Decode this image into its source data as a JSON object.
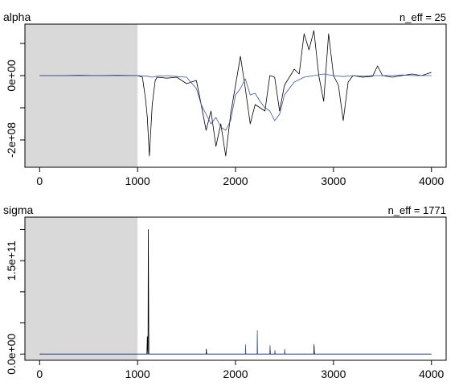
{
  "chart_data": [
    {
      "type": "line",
      "title": "alpha",
      "annotation": "n_eff = 25",
      "xlim": [
        -150,
        4150
      ],
      "ylim": [
        -285000000,
        160000000
      ],
      "warmup": [
        0,
        1000
      ],
      "x_ticks": [
        0,
        1000,
        2000,
        3000,
        4000
      ],
      "x_tick_labels": [
        "0",
        "1000",
        "2000",
        "3000",
        "4000"
      ],
      "y_ticks": [
        -200000000,
        -100000000,
        0,
        100000000
      ],
      "y_tick_labels": [
        {
          "value": 0,
          "text": "0e+00"
        },
        {
          "value": -200000000,
          "text": "-2e+08"
        }
      ],
      "colors": {
        "chain1": "#000000",
        "chain2": "#3a55a0",
        "warmup_shade": "#d9d9d9"
      },
      "series": [
        {
          "x": [
            0,
            200,
            400,
            600,
            800,
            1000,
            1050,
            1080,
            1100,
            1120,
            1150,
            1180,
            1200,
            1300,
            1400,
            1500,
            1600,
            1650,
            1700,
            1750,
            1800,
            1850,
            1900,
            1950,
            2000,
            2050,
            2100,
            2150,
            2200,
            2250,
            2300,
            2350,
            2400,
            2450,
            2500,
            2550,
            2600,
            2650,
            2700,
            2750,
            2800,
            2850,
            2900,
            2950,
            3000,
            3050,
            3100,
            3150,
            3200,
            3300,
            3400,
            3450,
            3500,
            3600,
            3700,
            3800,
            3900,
            4000
          ],
          "values": [
            0,
            0,
            1000000,
            0,
            1000000,
            0,
            -5000000,
            -70000000,
            -130000000,
            -250000000,
            -90000000,
            -15000000,
            -5000000,
            -8000000,
            -5000000,
            -25000000,
            -15000000,
            -90000000,
            -170000000,
            -110000000,
            -220000000,
            -150000000,
            -250000000,
            -120000000,
            -30000000,
            60000000,
            -40000000,
            -150000000,
            -90000000,
            -100000000,
            -110000000,
            0,
            -5000000,
            -110000000,
            -30000000,
            -5000000,
            20000000,
            5000000,
            130000000,
            80000000,
            140000000,
            0,
            -80000000,
            130000000,
            0,
            -30000000,
            -140000000,
            -20000000,
            0,
            -5000000,
            -2000000,
            30000000,
            0,
            -5000000,
            0,
            5000000,
            0,
            10000000
          ]
        },
        {
          "x": [
            0,
            200,
            400,
            600,
            800,
            1000,
            1100,
            1150,
            1200,
            1300,
            1400,
            1500,
            1600,
            1650,
            1700,
            1750,
            1800,
            1850,
            1900,
            1950,
            2000,
            2050,
            2100,
            2150,
            2200,
            2250,
            2300,
            2350,
            2400,
            2450,
            2500,
            2600,
            2700,
            2800,
            2900,
            3000,
            3100,
            3200,
            3300,
            3400,
            3500,
            3600,
            3700,
            3800,
            3900,
            4000
          ],
          "values": [
            0,
            0,
            0,
            0,
            0,
            0,
            -2000000,
            -5000000,
            -2000000,
            0,
            -3000000,
            -5000000,
            -40000000,
            -90000000,
            -120000000,
            -150000000,
            -130000000,
            -160000000,
            -170000000,
            -140000000,
            -60000000,
            -40000000,
            -10000000,
            -60000000,
            -55000000,
            -80000000,
            -100000000,
            -110000000,
            -140000000,
            -120000000,
            -60000000,
            -20000000,
            -5000000,
            0,
            5000000,
            0,
            -3000000,
            0,
            -2000000,
            0,
            0,
            0,
            2000000,
            0,
            0,
            0
          ]
        }
      ]
    },
    {
      "type": "line",
      "title": "sigma",
      "annotation": "n_eff = 1771",
      "xlim": [
        -150,
        4150
      ],
      "ylim": [
        -10000000000,
        220000000000
      ],
      "warmup": [
        0,
        1000
      ],
      "x_ticks": [
        0,
        1000,
        2000,
        3000,
        4000
      ],
      "x_tick_labels": [
        "0",
        "1000",
        "2000",
        "3000",
        "4000"
      ],
      "y_ticks": [
        0,
        50000000000,
        100000000000,
        150000000000,
        200000000000
      ],
      "y_tick_labels": [
        {
          "value": 0,
          "text": "0.0e+00"
        },
        {
          "value": 150000000000,
          "text": "1.5e+11"
        }
      ],
      "colors": {
        "chain1": "#000000",
        "chain2": "#3a55a0",
        "warmup_shade": "#d9d9d9"
      },
      "series": [
        {
          "x": [
            0,
            1000,
            1095,
            1100,
            1105,
            1106,
            1110,
            1115,
            1400,
            1700,
            1702,
            1705,
            1900,
            2350,
            2352,
            2356,
            2800,
            2802,
            2806,
            4000
          ],
          "values": [
            0,
            0,
            0,
            28000000000,
            0,
            0,
            200000000000,
            0,
            0,
            0,
            8000000000,
            0,
            0,
            0,
            12000000000,
            0,
            0,
            15000000000,
            0,
            0
          ]
        },
        {
          "x": [
            0,
            1000,
            1500,
            1800,
            2100,
            2102,
            2106,
            2220,
            2222,
            2226,
            2350,
            2352,
            2356,
            2400,
            2402,
            2406,
            2500,
            2502,
            2506,
            3000,
            4000
          ],
          "values": [
            0,
            0,
            0,
            0,
            0,
            15000000000,
            0,
            0,
            38000000000,
            0,
            0,
            14000000000,
            0,
            0,
            6000000000,
            0,
            0,
            8000000000,
            0,
            0,
            0
          ]
        }
      ]
    }
  ]
}
